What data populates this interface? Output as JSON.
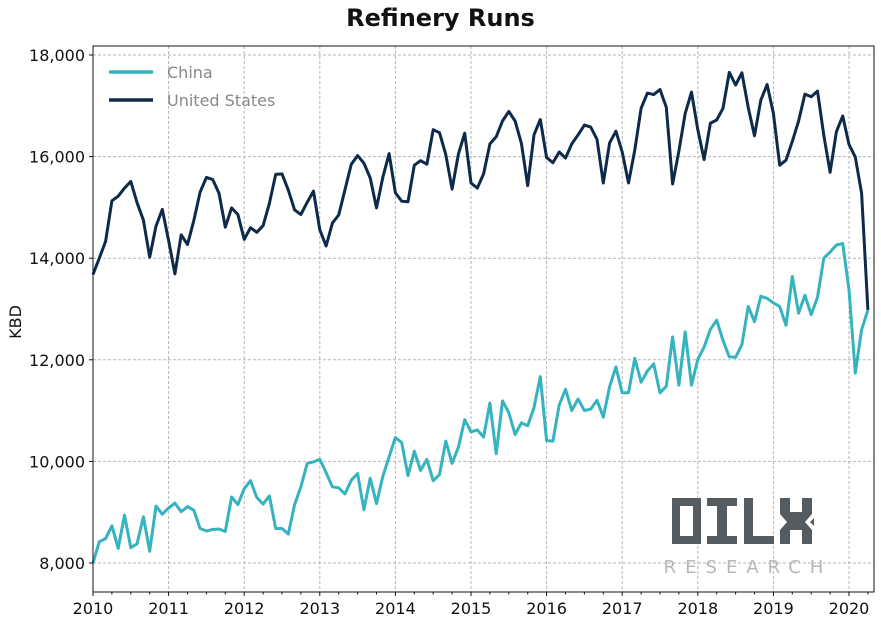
{
  "chart_data": {
    "type": "line",
    "title": "Refinery Runs",
    "xlabel": "",
    "ylabel": "KBD",
    "xlim": [
      2010.0,
      2020.33
    ],
    "ylim": [
      7450,
      18200
    ],
    "grid": true,
    "legend_position": "top-left",
    "x_ticks": [
      "2010",
      "2011",
      "2012",
      "2013",
      "2014",
      "2015",
      "2016",
      "2017",
      "2018",
      "2019",
      "2020"
    ],
    "y_ticks": [
      "8,000",
      "10,000",
      "12,000",
      "14,000",
      "16,000",
      "18,000"
    ],
    "x_tick_values": [
      2010,
      2011,
      2012,
      2013,
      2014,
      2015,
      2016,
      2017,
      2018,
      2019,
      2020
    ],
    "y_tick_values": [
      8000,
      10000,
      12000,
      14000,
      16000,
      18000
    ],
    "x_start": 2010.0,
    "x_step_months": 1,
    "series": [
      {
        "name": "China",
        "color": "#35b3be",
        "values": [
          8000,
          8420,
          8480,
          8730,
          8290,
          8940,
          8300,
          8380,
          8910,
          8230,
          9120,
          8960,
          9080,
          9180,
          9010,
          9110,
          9040,
          8680,
          8630,
          8660,
          8670,
          8620,
          9300,
          9150,
          9460,
          9620,
          9290,
          9160,
          9320,
          8680,
          8680,
          8570,
          9150,
          9500,
          9960,
          9990,
          10040,
          9780,
          9500,
          9480,
          9360,
          9630,
          9760,
          9050,
          9670,
          9170,
          9700,
          10090,
          10470,
          10370,
          9720,
          10200,
          9820,
          10040,
          9620,
          9740,
          10400,
          9960,
          10280,
          10820,
          10580,
          10620,
          10480,
          11150,
          10150,
          11190,
          10960,
          10530,
          10760,
          10700,
          11060,
          11670,
          10410,
          10400,
          11110,
          11420,
          11000,
          11230,
          11000,
          11030,
          11200,
          10870,
          11470,
          11860,
          11350,
          11350,
          12030,
          11560,
          11780,
          11920,
          11350,
          11480,
          12450,
          11500,
          12550,
          11500,
          12010,
          12250,
          12600,
          12780,
          12380,
          12060,
          12050,
          12300,
          13050,
          12750,
          13250,
          13210,
          13120,
          13050,
          12680,
          13640,
          12920,
          13270,
          12890,
          13230,
          14000,
          14120,
          14260,
          14290,
          13380,
          11740,
          12590,
          12980
        ]
      },
      {
        "name": "United States",
        "color": "#0e2a4a",
        "values": [
          13680,
          14000,
          14330,
          15130,
          15220,
          15380,
          15510,
          15090,
          14750,
          14020,
          14630,
          14960,
          14350,
          13690,
          14460,
          14270,
          14740,
          15300,
          15590,
          15550,
          15280,
          14610,
          14990,
          14860,
          14370,
          14600,
          14510,
          14640,
          15080,
          15650,
          15660,
          15340,
          14950,
          14860,
          15100,
          15320,
          14560,
          14240,
          14690,
          14850,
          15350,
          15850,
          16020,
          15870,
          15580,
          14990,
          15590,
          16060,
          15290,
          15120,
          15110,
          15830,
          15920,
          15850,
          16530,
          16470,
          16040,
          15360,
          16050,
          16460,
          15480,
          15380,
          15660,
          16250,
          16390,
          16700,
          16890,
          16700,
          16260,
          15430,
          16430,
          16730,
          15980,
          15880,
          16090,
          15970,
          16250,
          16430,
          16620,
          16580,
          16340,
          15480,
          16270,
          16500,
          16090,
          15480,
          16130,
          16950,
          17250,
          17220,
          17320,
          16970,
          15460,
          16110,
          16850,
          17270,
          16530,
          15940,
          16660,
          16720,
          16950,
          17660,
          17410,
          17650,
          16970,
          16410,
          17110,
          17420,
          16850,
          15830,
          15930,
          16300,
          16700,
          17230,
          17180,
          17290,
          16420,
          15690,
          16490,
          16800,
          16240,
          15990,
          15280,
          12980
        ]
      }
    ]
  },
  "watermark": {
    "logo_text": "OILX",
    "sub_text": "RESEARCH",
    "logo_color": "#545b61",
    "sub_color": "#b7b7b7"
  }
}
